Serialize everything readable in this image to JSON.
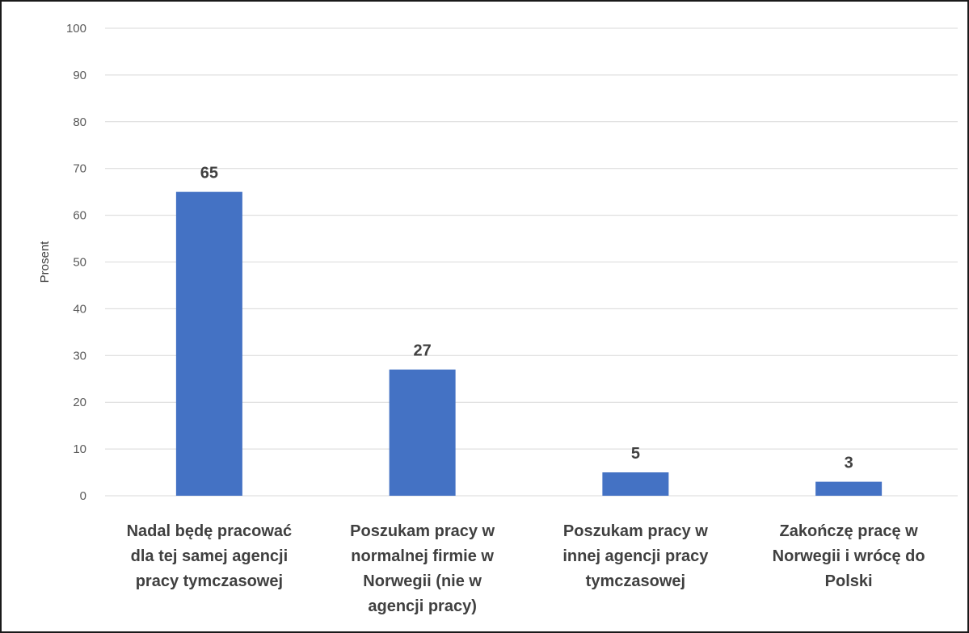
{
  "chart_data": {
    "type": "bar",
    "title": "",
    "xlabel": "",
    "ylabel": "Prosent",
    "ylim": [
      0,
      100
    ],
    "yticks": [
      0,
      10,
      20,
      30,
      40,
      50,
      60,
      70,
      80,
      90,
      100
    ],
    "grid": true,
    "legend": "none",
    "bar_color": "#4472c4",
    "grid_color": "#d9d9d9",
    "categories": [
      [
        "Nadal będę pracować",
        "dla tej samej agencji",
        "pracy tymczasowej"
      ],
      [
        "Poszukam pracy w",
        "normalnej firmie w",
        "Norwegii (nie w",
        "agencji pracy)"
      ],
      [
        "Poszukam pracy w",
        "innej agencji pracy",
        "tymczasowej"
      ],
      [
        "Zakończę pracę w",
        "Norwegii i wrócę do",
        "Polski"
      ]
    ],
    "values": [
      65,
      27,
      5,
      3
    ],
    "data_labels": [
      "65",
      "27",
      "5",
      "3"
    ]
  }
}
